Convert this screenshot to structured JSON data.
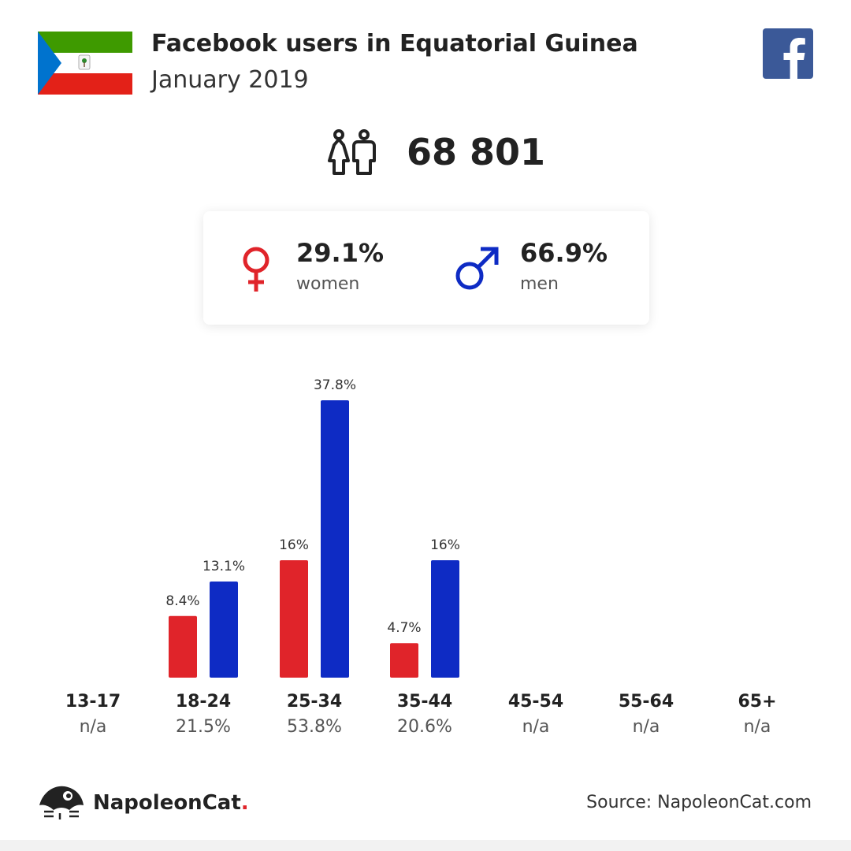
{
  "header": {
    "title": "Facebook users in Equatorial Guinea",
    "subtitle": "January 2019"
  },
  "icons": {
    "flag": "equatorial-guinea-flag",
    "social": "facebook-logo",
    "users": "users-icon",
    "female": "female-symbol-icon",
    "male": "male-symbol-icon",
    "brand": "napoleoncat-logo"
  },
  "total": {
    "value": "68 801"
  },
  "gender": {
    "women": {
      "pct": "29.1%",
      "label": "women"
    },
    "men": {
      "pct": "66.9%",
      "label": "men"
    }
  },
  "colors": {
    "women": "#e0242a",
    "men": "#0e2bc4",
    "flag_green": "#3e9a00",
    "flag_red": "#e32118",
    "flag_blue": "#0073ce",
    "facebook": "#3b5998"
  },
  "chart_data": {
    "type": "bar",
    "categories": [
      "13-17",
      "18-24",
      "25-34",
      "35-44",
      "45-54",
      "55-64",
      "65+"
    ],
    "category_totals": [
      "n/a",
      "21.5%",
      "53.8%",
      "20.6%",
      "n/a",
      "n/a",
      "n/a"
    ],
    "series": [
      {
        "name": "women",
        "values": [
          null,
          8.4,
          16,
          4.7,
          null,
          null,
          null
        ],
        "labels": [
          "",
          "8.4%",
          "16%",
          "4.7%",
          "",
          "",
          ""
        ]
      },
      {
        "name": "men",
        "values": [
          null,
          13.1,
          37.8,
          16,
          null,
          null,
          null
        ],
        "labels": [
          "",
          "13.1%",
          "37.8%",
          "16%",
          "",
          "",
          ""
        ]
      }
    ],
    "ylim": [
      0,
      37.8
    ]
  },
  "footer": {
    "brand": "NapoleonCat",
    "brand_dot": ".",
    "source": "Source: NapoleonCat.com"
  }
}
